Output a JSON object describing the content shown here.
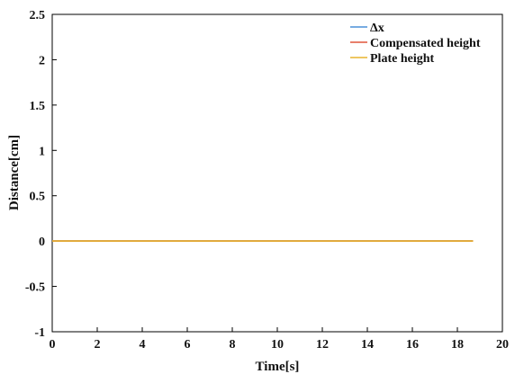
{
  "chart_data": {
    "type": "line",
    "title": "",
    "xlabel": "Time[s]",
    "ylabel": "Distance[cm]",
    "xlim": [
      0,
      20
    ],
    "ylim": [
      -1,
      2.5
    ],
    "xticks": [
      0,
      2,
      4,
      6,
      8,
      10,
      12,
      14,
      16,
      18,
      20
    ],
    "yticks": [
      -1,
      -0.5,
      0,
      0.5,
      1,
      1.5,
      2,
      2.5
    ],
    "grid": false,
    "legend_position": "top-right",
    "series": [
      {
        "name": "Δx",
        "color": "#4a90d9",
        "x": [
          0,
          18.7
        ],
        "y": [
          0,
          0
        ]
      },
      {
        "name": "Compensated height",
        "color": "#e0553a",
        "x": [
          0,
          18.7
        ],
        "y": [
          0,
          0
        ]
      },
      {
        "name": "Plate height",
        "color": "#e8b32e",
        "x": [
          0,
          18.7
        ],
        "y": [
          0,
          0
        ]
      }
    ]
  }
}
